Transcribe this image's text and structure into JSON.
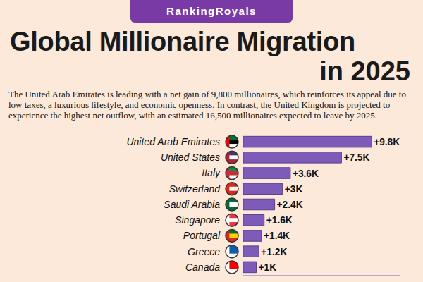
{
  "brand": "RankingRoyals",
  "chart_data": {
    "type": "bar",
    "orientation": "horizontal",
    "title": "Global Millionaire Migration in 2025",
    "subtitle": "The United Arab Emirates is leading with a net gain of 9,800 millionaires, which reinforces its appeal due to low taxes, a luxurious lifestyle, and economic openness. In contrast, the United Kingdom is projected to experience the highest net outflow, with an estimated 16,500 millionaires expected to leave by 2025.",
    "categories": [
      "United Arab Emirates",
      "United States",
      "Italy",
      "Switzerland",
      "Saudi Arabia",
      "Singapore",
      "Portugal",
      "Greece",
      "Canada"
    ],
    "values": [
      9800,
      7500,
      3600,
      3000,
      2400,
      1600,
      1400,
      1200,
      1000
    ],
    "value_labels": [
      "+9.8K",
      "+7.5K",
      "+3.6K",
      "+3K",
      "+2.4K",
      "+1.6K",
      "+1.4K",
      "+1.2K",
      "+1K"
    ],
    "color": "#7c5cb8",
    "xlim": [
      0,
      12000
    ],
    "grid": false,
    "data_labels": true,
    "tick_labels": "y"
  }
}
